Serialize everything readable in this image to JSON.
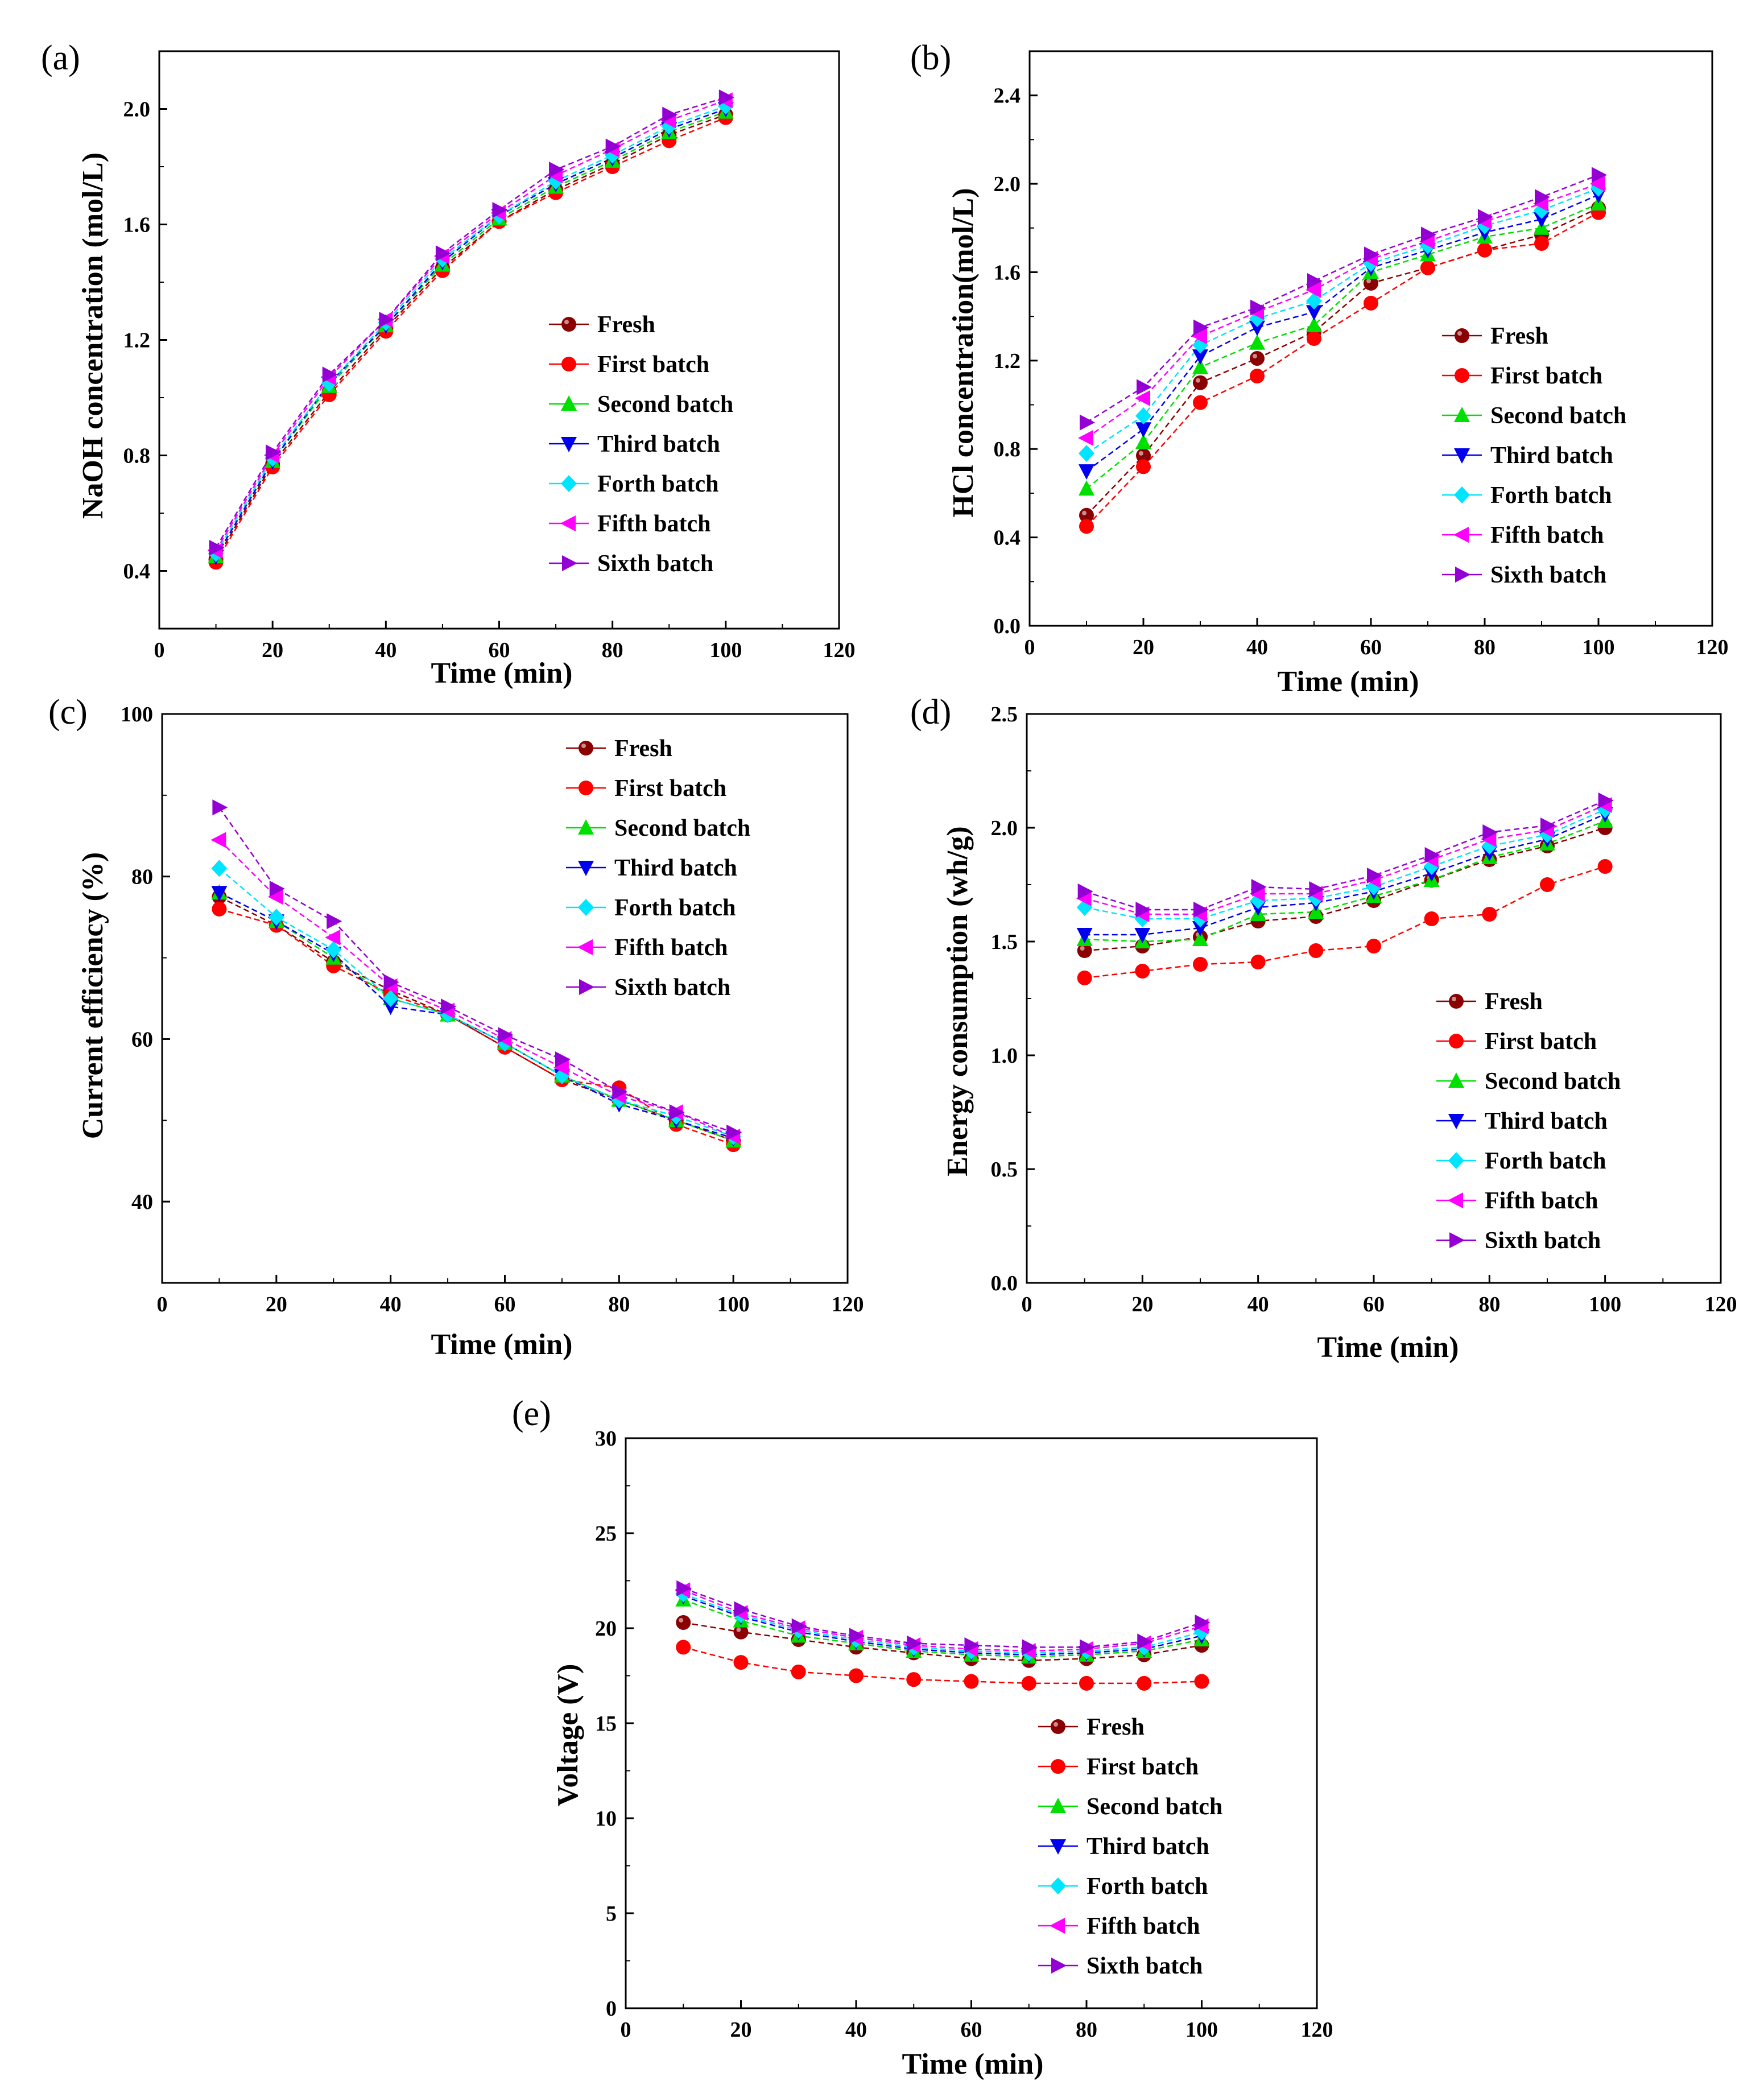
{
  "figure": {
    "series_styles": [
      {
        "name": "Fresh",
        "color": "#8b0000",
        "marker": "sphere"
      },
      {
        "name": "First batch",
        "color": "#ff0000",
        "marker": "circle"
      },
      {
        "name": "Second batch",
        "color": "#00e000",
        "marker": "triangle-up"
      },
      {
        "name": "Third batch",
        "color": "#0000ee",
        "marker": "triangle-down"
      },
      {
        "name": "Forth batch",
        "color": "#00e5ff",
        "marker": "diamond"
      },
      {
        "name": "Fifth batch",
        "color": "#ff00ff",
        "marker": "triangle-left"
      },
      {
        "name": "Sixth batch",
        "color": "#9400d3",
        "marker": "triangle-right"
      }
    ]
  },
  "chart_data": [
    {
      "id": "a",
      "panel_label": "(a)",
      "type": "line",
      "xlabel": "Time (min)",
      "ylabel": "NaOH concentration (mol/L)",
      "xlim": [
        0,
        120
      ],
      "ylim": [
        0.2,
        2.2
      ],
      "xticks": [
        0,
        20,
        40,
        60,
        80,
        100,
        120
      ],
      "yticks": [
        0.4,
        0.8,
        1.2,
        1.6,
        2.0
      ],
      "ytick_labels": [
        "0.4",
        "0.8",
        "1.2",
        "1.6",
        "2.0"
      ],
      "legend_position": "bottom-right",
      "x": [
        10,
        20,
        30,
        40,
        50,
        60,
        70,
        80,
        90,
        100
      ],
      "series": [
        {
          "name": "Fresh",
          "values": [
            0.44,
            0.77,
            1.02,
            1.24,
            1.45,
            1.61,
            1.72,
            1.81,
            1.91,
            1.98
          ]
        },
        {
          "name": "First batch",
          "values": [
            0.43,
            0.76,
            1.01,
            1.23,
            1.44,
            1.61,
            1.71,
            1.8,
            1.89,
            1.97
          ]
        },
        {
          "name": "Second batch",
          "values": [
            0.45,
            0.78,
            1.04,
            1.25,
            1.46,
            1.62,
            1.73,
            1.82,
            1.92,
            1.99
          ]
        },
        {
          "name": "Third batch",
          "values": [
            0.45,
            0.78,
            1.05,
            1.25,
            1.47,
            1.63,
            1.74,
            1.83,
            1.93,
            2.0
          ]
        },
        {
          "name": "Forth batch",
          "values": [
            0.46,
            0.79,
            1.05,
            1.26,
            1.48,
            1.63,
            1.75,
            1.84,
            1.94,
            2.01
          ]
        },
        {
          "name": "Fifth batch",
          "values": [
            0.47,
            0.8,
            1.07,
            1.27,
            1.49,
            1.64,
            1.77,
            1.86,
            1.96,
            2.03
          ]
        },
        {
          "name": "Sixth batch",
          "values": [
            0.48,
            0.81,
            1.08,
            1.27,
            1.5,
            1.65,
            1.79,
            1.87,
            1.98,
            2.04
          ]
        }
      ]
    },
    {
      "id": "b",
      "panel_label": "(b)",
      "type": "line",
      "xlabel": "Time (min)",
      "ylabel": "HCl concentration(mol/L)",
      "xlim": [
        0,
        120
      ],
      "ylim": [
        0.0,
        2.6
      ],
      "xticks": [
        0,
        20,
        40,
        60,
        80,
        100,
        120
      ],
      "yticks": [
        0.0,
        0.4,
        0.8,
        1.2,
        1.6,
        2.0,
        2.4
      ],
      "ytick_labels": [
        "0.0",
        "0.4",
        "0.8",
        "1.2",
        "1.6",
        "2.0",
        "2.4"
      ],
      "legend_position": "bottom-right",
      "x": [
        10,
        20,
        30,
        40,
        50,
        60,
        70,
        80,
        90,
        100
      ],
      "series": [
        {
          "name": "Fresh",
          "values": [
            0.5,
            0.77,
            1.1,
            1.21,
            1.33,
            1.55,
            1.62,
            1.7,
            1.77,
            1.89
          ]
        },
        {
          "name": "First batch",
          "values": [
            0.45,
            0.72,
            1.01,
            1.13,
            1.3,
            1.46,
            1.62,
            1.7,
            1.73,
            1.87
          ]
        },
        {
          "name": "Second batch",
          "values": [
            0.62,
            0.83,
            1.17,
            1.28,
            1.36,
            1.6,
            1.68,
            1.76,
            1.8,
            1.91
          ]
        },
        {
          "name": "Third batch",
          "values": [
            0.7,
            0.89,
            1.22,
            1.35,
            1.42,
            1.62,
            1.7,
            1.78,
            1.84,
            1.95
          ]
        },
        {
          "name": "Forth batch",
          "values": [
            0.78,
            0.95,
            1.27,
            1.39,
            1.47,
            1.64,
            1.72,
            1.81,
            1.88,
            1.98
          ]
        },
        {
          "name": "Fifth batch",
          "values": [
            0.85,
            1.03,
            1.31,
            1.42,
            1.52,
            1.66,
            1.74,
            1.83,
            1.91,
            2.0
          ]
        },
        {
          "name": "Sixth batch",
          "values": [
            0.92,
            1.08,
            1.35,
            1.44,
            1.56,
            1.68,
            1.77,
            1.85,
            1.94,
            2.04
          ]
        }
      ]
    },
    {
      "id": "c",
      "panel_label": "(c)",
      "type": "line",
      "xlabel": "Time (min)",
      "ylabel": "Current efficiency (%)",
      "xlim": [
        0,
        120
      ],
      "ylim": [
        30,
        100
      ],
      "xticks": [
        0,
        20,
        40,
        60,
        80,
        100,
        120
      ],
      "yticks": [
        40,
        60,
        80,
        100
      ],
      "ytick_labels": [
        "40",
        "60",
        "80",
        "100"
      ],
      "legend_position": "top-right",
      "x": [
        10,
        20,
        30,
        40,
        50,
        60,
        70,
        80,
        90,
        100
      ],
      "series": [
        {
          "name": "Fresh",
          "values": [
            77.5,
            74.0,
            69.5,
            66.0,
            63.0,
            59.0,
            55.0,
            52.5,
            50.0,
            47.5
          ]
        },
        {
          "name": "First batch",
          "values": [
            76.0,
            74.0,
            69.0,
            65.5,
            63.0,
            59.0,
            55.0,
            54.0,
            49.5,
            47.0
          ]
        },
        {
          "name": "Second batch",
          "values": [
            78.0,
            74.5,
            70.0,
            65.0,
            63.0,
            59.5,
            55.5,
            52.5,
            50.0,
            47.5
          ]
        },
        {
          "name": "Third batch",
          "values": [
            78.0,
            74.5,
            70.5,
            64.0,
            63.0,
            59.5,
            55.5,
            52.0,
            50.0,
            47.8
          ]
        },
        {
          "name": "Forth batch",
          "values": [
            81.0,
            75.0,
            71.0,
            65.0,
            63.0,
            59.5,
            55.5,
            52.5,
            50.5,
            48.0
          ]
        },
        {
          "name": "Fifth batch",
          "values": [
            84.5,
            77.5,
            72.5,
            66.5,
            63.5,
            60.0,
            56.5,
            53.0,
            51.0,
            48.0
          ]
        },
        {
          "name": "Sixth batch",
          "values": [
            88.5,
            78.5,
            74.5,
            67.0,
            64.0,
            60.5,
            57.5,
            53.5,
            51.0,
            48.5
          ]
        }
      ]
    },
    {
      "id": "d",
      "panel_label": "(d)",
      "type": "line",
      "xlabel": "Time (min)",
      "ylabel": "Energy consumption (wh/g)",
      "xlim": [
        0,
        120
      ],
      "ylim": [
        0.0,
        2.5
      ],
      "xticks": [
        0,
        20,
        40,
        60,
        80,
        100,
        120
      ],
      "yticks": [
        0.0,
        0.5,
        1.0,
        1.5,
        2.0,
        2.5
      ],
      "ytick_labels": [
        "0.0",
        "0.5",
        "1.0",
        "1.5",
        "2.0",
        "2.5"
      ],
      "legend_position": "bottom-right",
      "x": [
        10,
        20,
        30,
        40,
        50,
        60,
        70,
        80,
        90,
        100
      ],
      "series": [
        {
          "name": "Fresh",
          "values": [
            1.46,
            1.48,
            1.52,
            1.59,
            1.61,
            1.68,
            1.77,
            1.86,
            1.92,
            2.0
          ]
        },
        {
          "name": "First batch",
          "values": [
            1.34,
            1.37,
            1.4,
            1.41,
            1.46,
            1.48,
            1.6,
            1.62,
            1.75,
            1.83
          ]
        },
        {
          "name": "Second batch",
          "values": [
            1.51,
            1.5,
            1.51,
            1.62,
            1.63,
            1.7,
            1.77,
            1.87,
            1.93,
            2.03
          ]
        },
        {
          "name": "Third batch",
          "values": [
            1.53,
            1.53,
            1.56,
            1.65,
            1.67,
            1.72,
            1.8,
            1.89,
            1.95,
            2.06
          ]
        },
        {
          "name": "Forth batch",
          "values": [
            1.65,
            1.6,
            1.6,
            1.68,
            1.69,
            1.74,
            1.83,
            1.92,
            1.97,
            2.08
          ]
        },
        {
          "name": "Fifth batch",
          "values": [
            1.69,
            1.62,
            1.62,
            1.71,
            1.71,
            1.77,
            1.86,
            1.95,
            1.99,
            2.1
          ]
        },
        {
          "name": "Sixth batch",
          "values": [
            1.72,
            1.64,
            1.64,
            1.74,
            1.73,
            1.79,
            1.88,
            1.98,
            2.01,
            2.12
          ]
        }
      ]
    },
    {
      "id": "e",
      "panel_label": "(e)",
      "type": "line",
      "xlabel": "Time (min)",
      "ylabel": "Voltage (V)",
      "xlim": [
        0,
        120
      ],
      "ylim": [
        0,
        30
      ],
      "xticks": [
        0,
        20,
        40,
        60,
        80,
        100,
        120
      ],
      "yticks": [
        0,
        5,
        10,
        15,
        20,
        25,
        30
      ],
      "ytick_labels": [
        "0",
        "5",
        "10",
        "15",
        "20",
        "25",
        "30"
      ],
      "legend_position": "right",
      "x": [
        10,
        20,
        30,
        40,
        50,
        60,
        70,
        80,
        90,
        100
      ],
      "series": [
        {
          "name": "Fresh",
          "values": [
            20.3,
            19.8,
            19.4,
            19.0,
            18.7,
            18.4,
            18.3,
            18.4,
            18.6,
            19.1
          ]
        },
        {
          "name": "First batch",
          "values": [
            19.0,
            18.2,
            17.7,
            17.5,
            17.3,
            17.2,
            17.1,
            17.1,
            17.1,
            17.2
          ]
        },
        {
          "name": "Second batch",
          "values": [
            21.5,
            20.4,
            19.6,
            19.2,
            18.8,
            18.6,
            18.5,
            18.6,
            18.8,
            19.4
          ]
        },
        {
          "name": "Third batch",
          "values": [
            21.7,
            20.6,
            19.8,
            19.3,
            18.9,
            18.7,
            18.6,
            18.7,
            18.9,
            19.6
          ]
        },
        {
          "name": "Forth batch",
          "values": [
            21.8,
            20.7,
            19.9,
            19.4,
            19.0,
            18.8,
            18.7,
            18.8,
            19.0,
            19.8
          ]
        },
        {
          "name": "Fifth batch",
          "values": [
            22.0,
            20.8,
            20.0,
            19.5,
            19.1,
            18.9,
            18.8,
            18.9,
            19.2,
            20.1
          ]
        },
        {
          "name": "Sixth batch",
          "values": [
            22.1,
            21.0,
            20.1,
            19.6,
            19.2,
            19.1,
            19.0,
            19.0,
            19.3,
            20.3
          ]
        }
      ]
    }
  ]
}
